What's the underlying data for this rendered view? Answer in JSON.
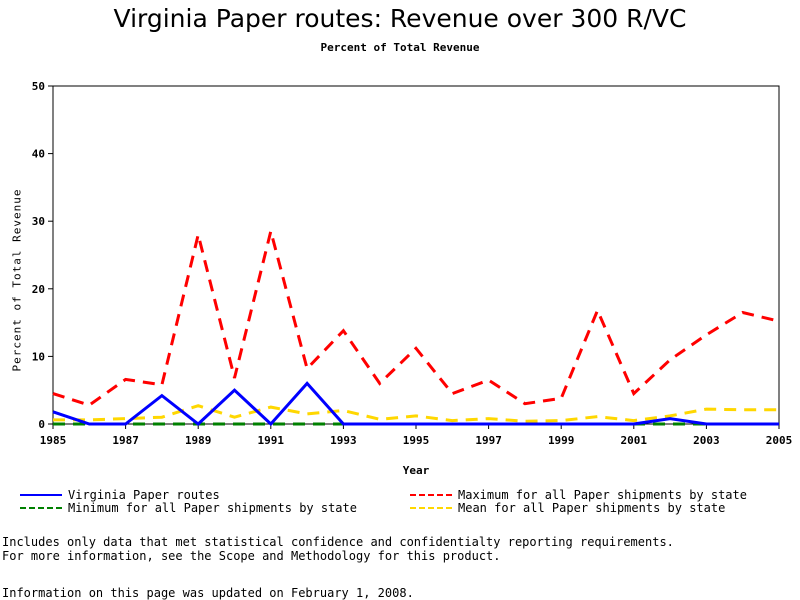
{
  "chart_data": {
    "type": "line",
    "title": "Virginia Paper routes: Revenue over 300 R/VC",
    "subtitle": "Percent of Total Revenue",
    "xlabel": "Year",
    "ylabel": "Percent of Total Revenue",
    "xlim": [
      1985,
      2005
    ],
    "ylim": [
      0,
      50
    ],
    "xticks": [
      1985,
      1987,
      1989,
      1991,
      1993,
      1995,
      1997,
      1999,
      2001,
      2003,
      2005
    ],
    "yticks": [
      0,
      10,
      20,
      30,
      40,
      50
    ],
    "grid": false,
    "legend_position": "bottom",
    "x": [
      1985,
      1986,
      1987,
      1988,
      1989,
      1990,
      1991,
      1992,
      1993,
      1994,
      1995,
      1996,
      1997,
      1998,
      1999,
      2000,
      2001,
      2002,
      2003,
      2004,
      2005
    ],
    "series": [
      {
        "name": "Virginia Paper routes",
        "color": "#0000ff",
        "style": "solid",
        "values": [
          1.8,
          0,
          0,
          4.2,
          0,
          5.0,
          0,
          6.0,
          0,
          0,
          0,
          0,
          0,
          0,
          0,
          0,
          0,
          0.8,
          0,
          0,
          0
        ]
      },
      {
        "name": "Maximum for all Paper shipments by state",
        "color": "#ff0000",
        "style": "dashed",
        "values": [
          4.5,
          2.8,
          6.6,
          5.8,
          28.0,
          6.8,
          28.5,
          8.2,
          13.8,
          6.0,
          11.2,
          4.5,
          6.5,
          3.0,
          3.8,
          16.8,
          4.5,
          9.5,
          13.2,
          16.5,
          15.2
        ]
      },
      {
        "name": "Minimum for all Paper shipments by state",
        "color": "#008000",
        "style": "dashed",
        "values": [
          0,
          0,
          0,
          0,
          0,
          0,
          0,
          0,
          0,
          0,
          0,
          0,
          0,
          0,
          0,
          0,
          0,
          0,
          0,
          0,
          0
        ]
      },
      {
        "name": "Mean for all Paper shipments by state",
        "color": "#ffd700",
        "style": "dashed",
        "values": [
          0.6,
          0.6,
          0.8,
          1.0,
          2.7,
          1.0,
          2.5,
          1.5,
          2.0,
          0.7,
          1.2,
          0.5,
          0.8,
          0.4,
          0.5,
          1.1,
          0.5,
          1.2,
          2.2,
          2.1,
          2.1
        ]
      }
    ]
  },
  "footnotes": {
    "line1": "Includes only data that met statistical confidence and confidentialty reporting requirements.",
    "line2": "For more information, see the Scope and Methodology for this product.",
    "line3": "Information on this page was updated on February 1, 2008."
  }
}
